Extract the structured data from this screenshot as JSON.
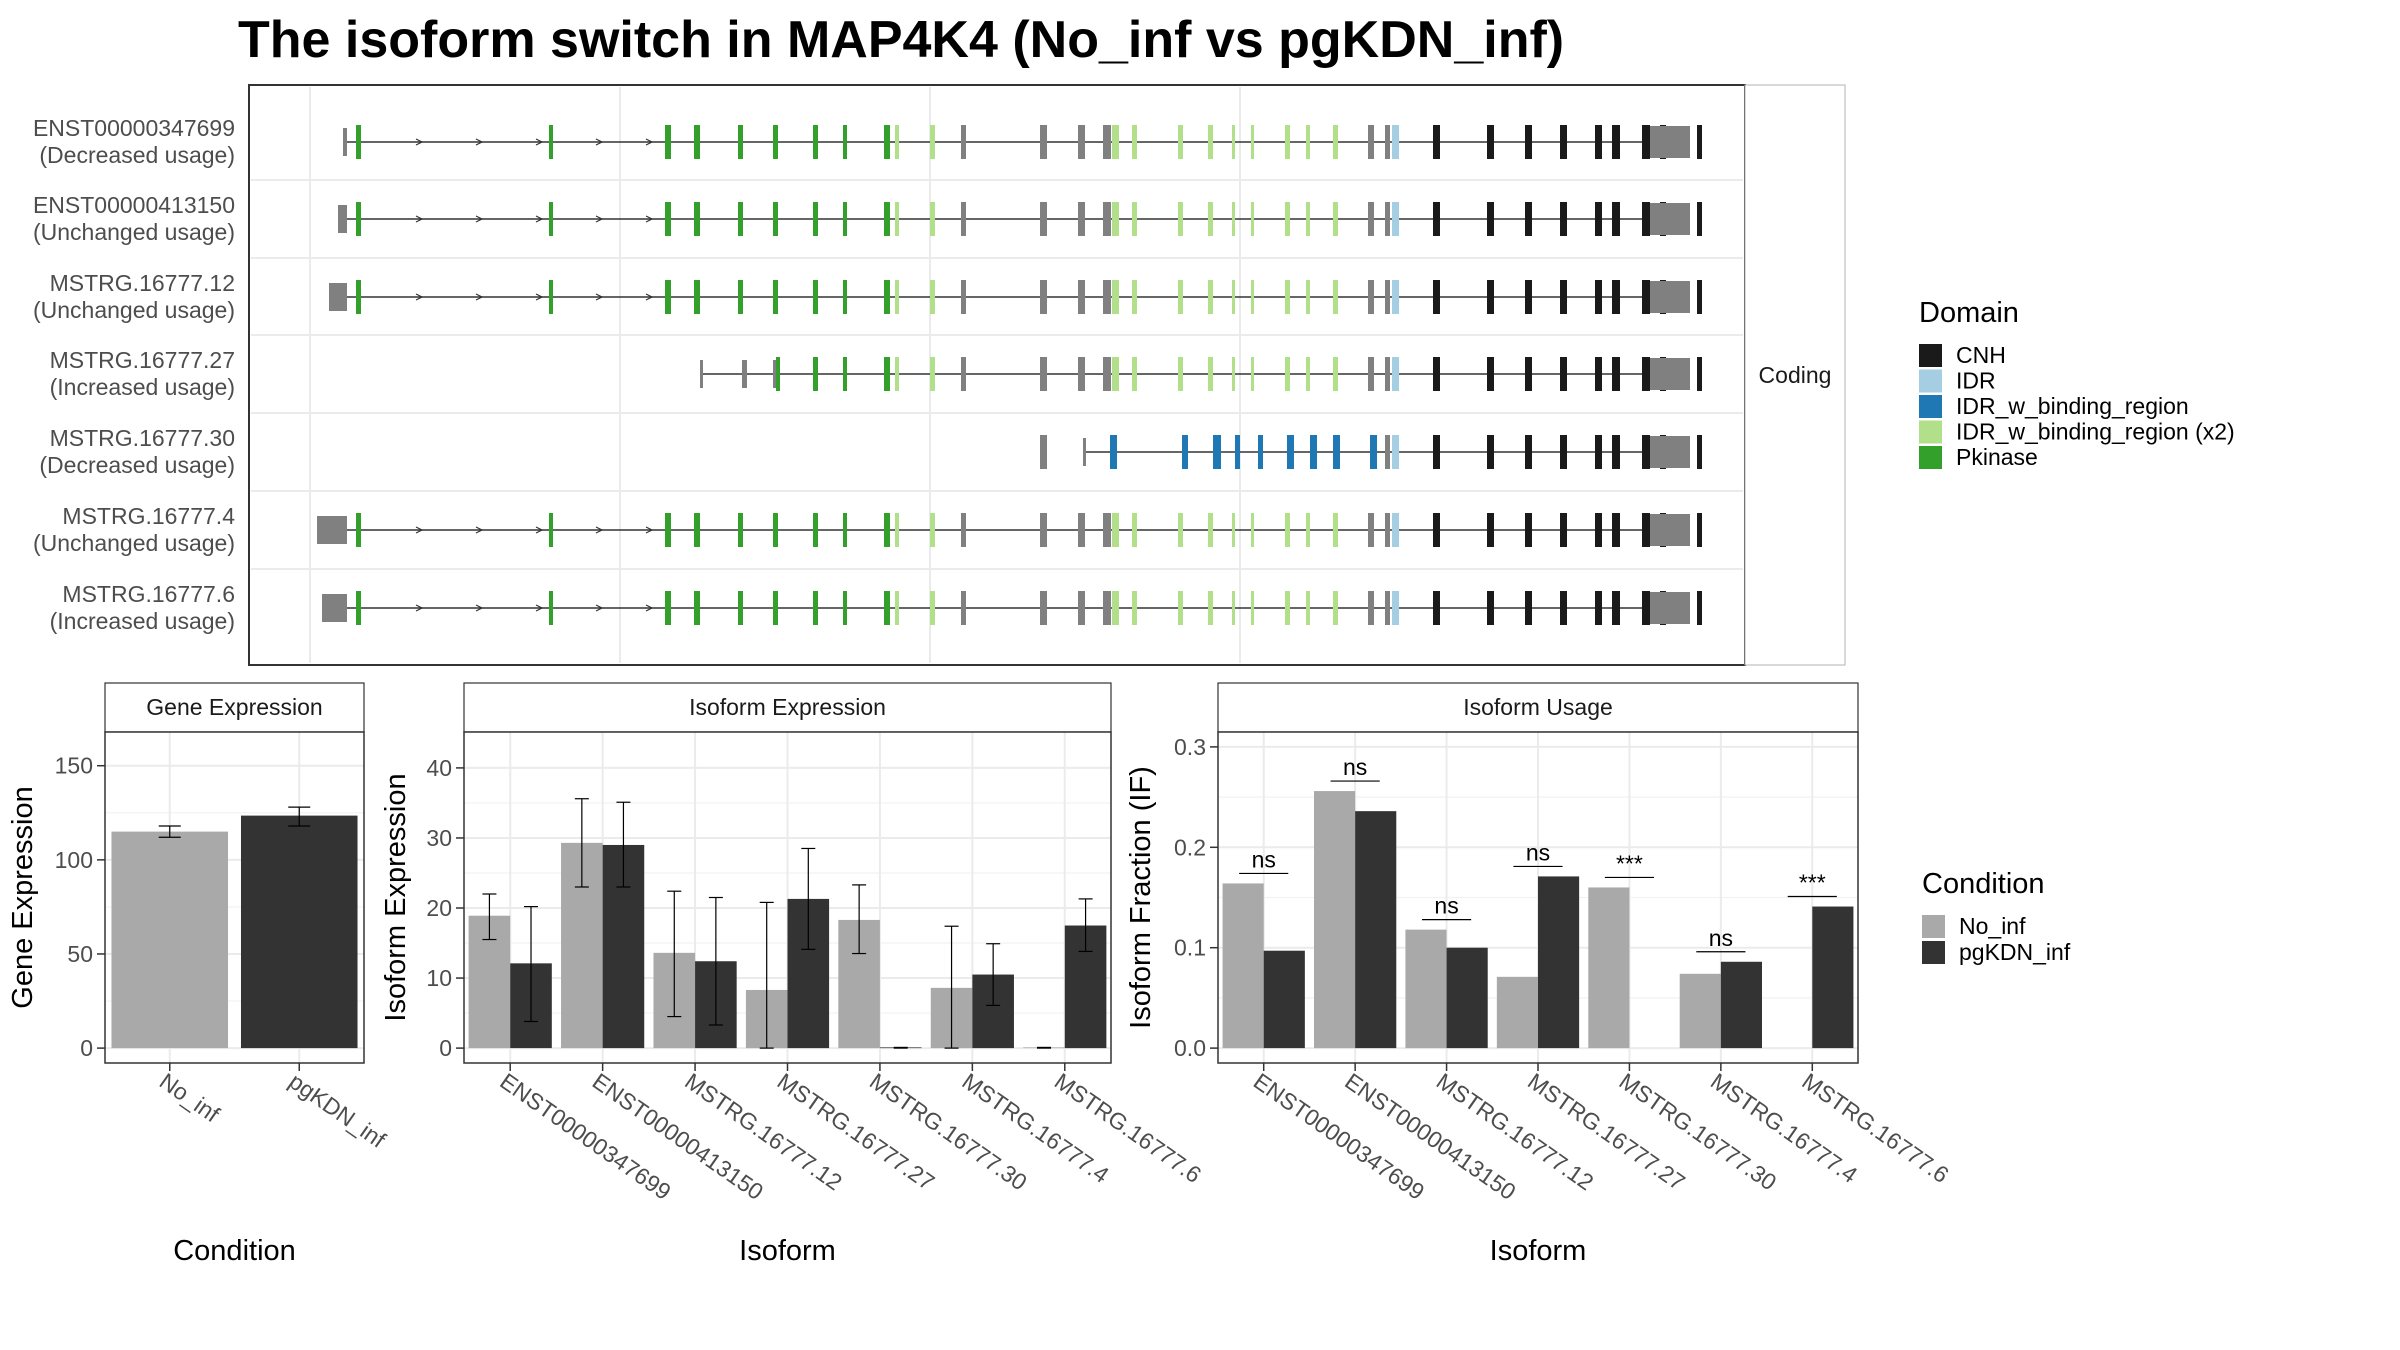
{
  "title": "The isoform switch in MAP4K4 (No_inf vs pgKDN_inf)",
  "colors": {
    "CNH": "#1a1a1a",
    "IDR": "#a6cee3",
    "IDR_w_binding_region": "#1f78b4",
    "IDR_w_binding_region (x2)": "#b2df8a",
    "Pkinase": "#33a02c",
    "noncoding": "#808080",
    "No_inf": "#a9a9a9",
    "pgKDN_inf": "#333333"
  },
  "structure": {
    "strip_label": "Coding",
    "transcripts": [
      {
        "name": "ENST00000347699",
        "usage": "(Decreased usage)"
      },
      {
        "name": "ENST00000413150",
        "usage": "(Unchanged usage)"
      },
      {
        "name": "MSTRG.16777.12",
        "usage": "(Unchanged usage)"
      },
      {
        "name": "MSTRG.16777.27",
        "usage": "(Increased usage)"
      },
      {
        "name": "MSTRG.16777.30",
        "usage": "(Decreased usage)"
      },
      {
        "name": "MSTRG.16777.4",
        "usage": "(Unchanged usage)"
      },
      {
        "name": "MSTRG.16777.6",
        "usage": "(Increased usage)"
      }
    ]
  },
  "domain_legend": {
    "title": "Domain",
    "items": [
      "CNH",
      "IDR",
      "IDR_w_binding_region",
      "IDR_w_binding_region (x2)",
      "Pkinase"
    ]
  },
  "condition_legend": {
    "title": "Condition",
    "items": [
      "No_inf",
      "pgKDN_inf"
    ]
  },
  "chart_data": [
    {
      "type": "bar",
      "title": "Gene Expression",
      "xlabel": "Condition",
      "ylabel": "Gene Expression",
      "categories": [
        "No_inf",
        "pgKDN_inf"
      ],
      "values": [
        115,
        123.5
      ],
      "errors": [
        [
          112,
          118
        ],
        [
          118,
          128
        ]
      ],
      "ylim": [
        0,
        160
      ],
      "yticks": [
        0,
        50,
        100,
        150
      ],
      "grid": true
    },
    {
      "type": "bar",
      "title": "Isoform Expression",
      "xlabel": "Isoform",
      "ylabel": "Isoform Expression",
      "categories": [
        "ENST00000347699",
        "ENST00000413150",
        "MSTRG.16777.12",
        "MSTRG.16777.27",
        "MSTRG.16777.30",
        "MSTRG.16777.4",
        "MSTRG.16777.6"
      ],
      "series": [
        {
          "name": "No_inf",
          "values": [
            18.9,
            29.3,
            13.6,
            8.3,
            18.3,
            8.6,
            0.1
          ],
          "errors": [
            [
              15.5,
              22.0
            ],
            [
              23.0,
              35.6
            ],
            [
              4.5,
              22.4
            ],
            [
              0,
              20.8
            ],
            [
              13.5,
              23.3
            ],
            [
              0,
              17.4
            ],
            [
              0,
              0.1
            ]
          ]
        },
        {
          "name": "pgKDN_inf",
          "values": [
            12.1,
            29.0,
            12.4,
            21.3,
            0.1,
            10.5,
            17.5
          ],
          "errors": [
            [
              3.8,
              20.2
            ],
            [
              23.0,
              35.1
            ],
            [
              3.3,
              21.5
            ],
            [
              14.1,
              28.5
            ],
            [
              0,
              0.1
            ],
            [
              6.1,
              14.9
            ],
            [
              13.8,
              21.3
            ]
          ]
        }
      ],
      "ylim": [
        0,
        43
      ],
      "yticks": [
        0,
        10,
        20,
        30,
        40
      ],
      "grid": true
    },
    {
      "type": "bar",
      "title": "Isoform Usage",
      "xlabel": "Isoform",
      "ylabel": "Isoform Fraction (IF)",
      "categories": [
        "ENST00000347699",
        "ENST00000413150",
        "MSTRG.16777.12",
        "MSTRG.16777.27",
        "MSTRG.16777.30",
        "MSTRG.16777.4",
        "MSTRG.16777.6"
      ],
      "series": [
        {
          "name": "No_inf",
          "values": [
            0.164,
            0.256,
            0.118,
            0.071,
            0.16,
            0.074,
            0
          ]
        },
        {
          "name": "pgKDN_inf",
          "values": [
            0.097,
            0.236,
            0.1,
            0.171,
            0,
            0.086,
            0.141
          ]
        }
      ],
      "significance": [
        "ns",
        "ns",
        "ns",
        "ns",
        "***",
        "ns",
        "***"
      ],
      "ylim": [
        0,
        0.3
      ],
      "yticks": [
        "0.0",
        "0.1",
        "0.2",
        "0.3"
      ],
      "grid": true
    }
  ]
}
